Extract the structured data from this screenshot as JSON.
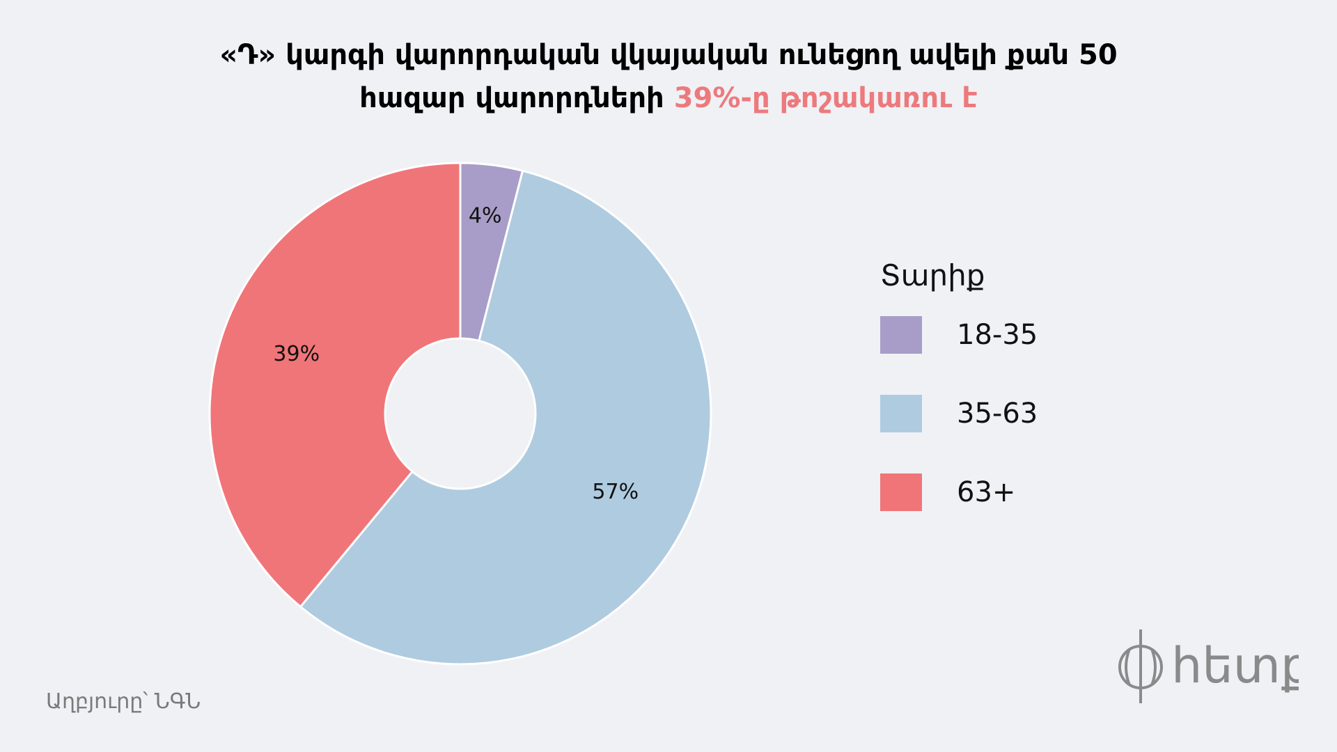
{
  "title": {
    "line1": "«Դ» կարգի վարորդական վկայական ունեցող ավելի քան 50",
    "line2_prefix": "հազար վարորդների ",
    "line2_highlight": "39%-ը թոշակառու է"
  },
  "chart_data": {
    "type": "pie",
    "donut": true,
    "legend_title": "Տարիք",
    "legend_position": "right",
    "categories": [
      "18-35",
      "35-63",
      "63+"
    ],
    "values": [
      4,
      57,
      39
    ],
    "labels": [
      "4%",
      "57%",
      "39%"
    ],
    "colors": [
      "#a89dc8",
      "#afcbe0",
      "#f07579"
    ]
  },
  "source": "Աղբյուրը՝ ՆԳՆ",
  "logo": {
    "text": "hետք",
    "icon": "globe-logo-icon"
  },
  "colors": {
    "background": "#f0f1f5",
    "accent": "#ec7a7d"
  }
}
